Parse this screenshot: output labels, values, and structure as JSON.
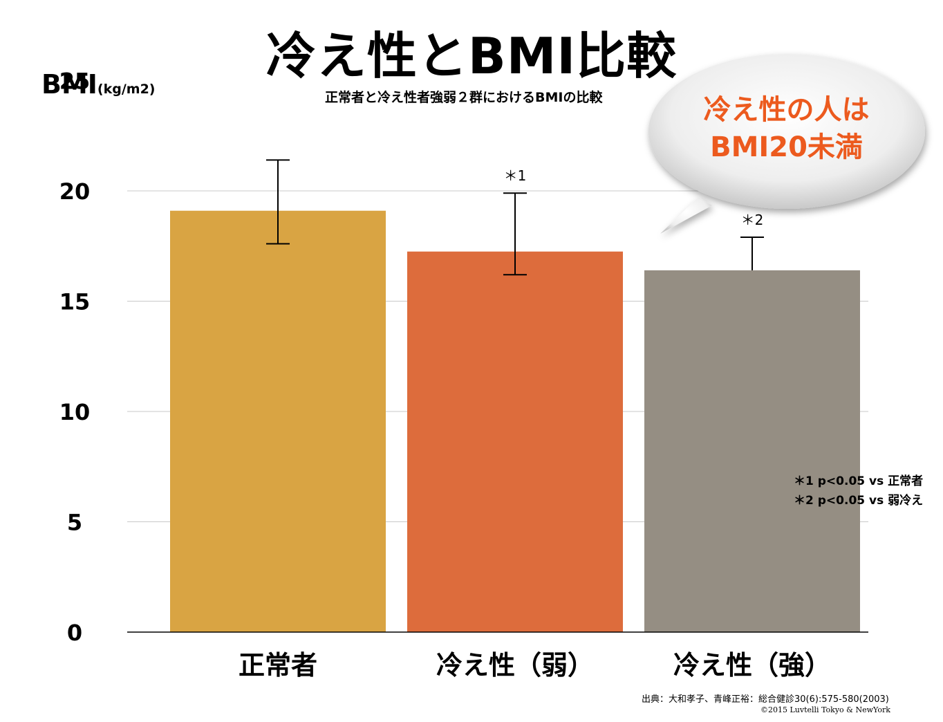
{
  "page": {
    "title": "冷え性とBMI比較",
    "ylabel_main": "BMI",
    "ylabel_unit": "(kg/m2)",
    "subtitle": "正常者と冷え性者強弱２群におけるBMIの比較",
    "callout": [
      "冷え性の人は",
      "BMI20未満"
    ],
    "notes": [
      "＊1 p<0.05 vs 正常者",
      "＊2 p<0.05 vs 弱冷え"
    ],
    "source": "出典：大和孝子、青峰正裕：総合健診30(6):575-580(2003)",
    "copyright": "©2015 Luvtelli Tokyo & NewYork"
  },
  "chart_data": {
    "type": "bar",
    "title": "冷え性とBMI比較",
    "subtitle": "正常者と冷え性者強弱２群におけるBMIの比較",
    "ylabel": "BMI(kg/m2)",
    "xlabel": "",
    "categories": [
      "正常者",
      "冷え性（弱）",
      "冷え性（強）"
    ],
    "values": [
      19.1,
      17.25,
      16.4
    ],
    "error_upper": [
      21.4,
      19.9,
      17.9
    ],
    "error_lower": [
      17.6,
      16.2,
      16.4
    ],
    "significance": [
      "",
      "＊1",
      "＊1\n＊2"
    ],
    "colors": [
      "#d9a443",
      "#dd6c3c",
      "#958e83"
    ],
    "ylim": [
      0,
      25
    ],
    "yticks": [
      0,
      5,
      10,
      15,
      20,
      25
    ],
    "grid": true
  }
}
